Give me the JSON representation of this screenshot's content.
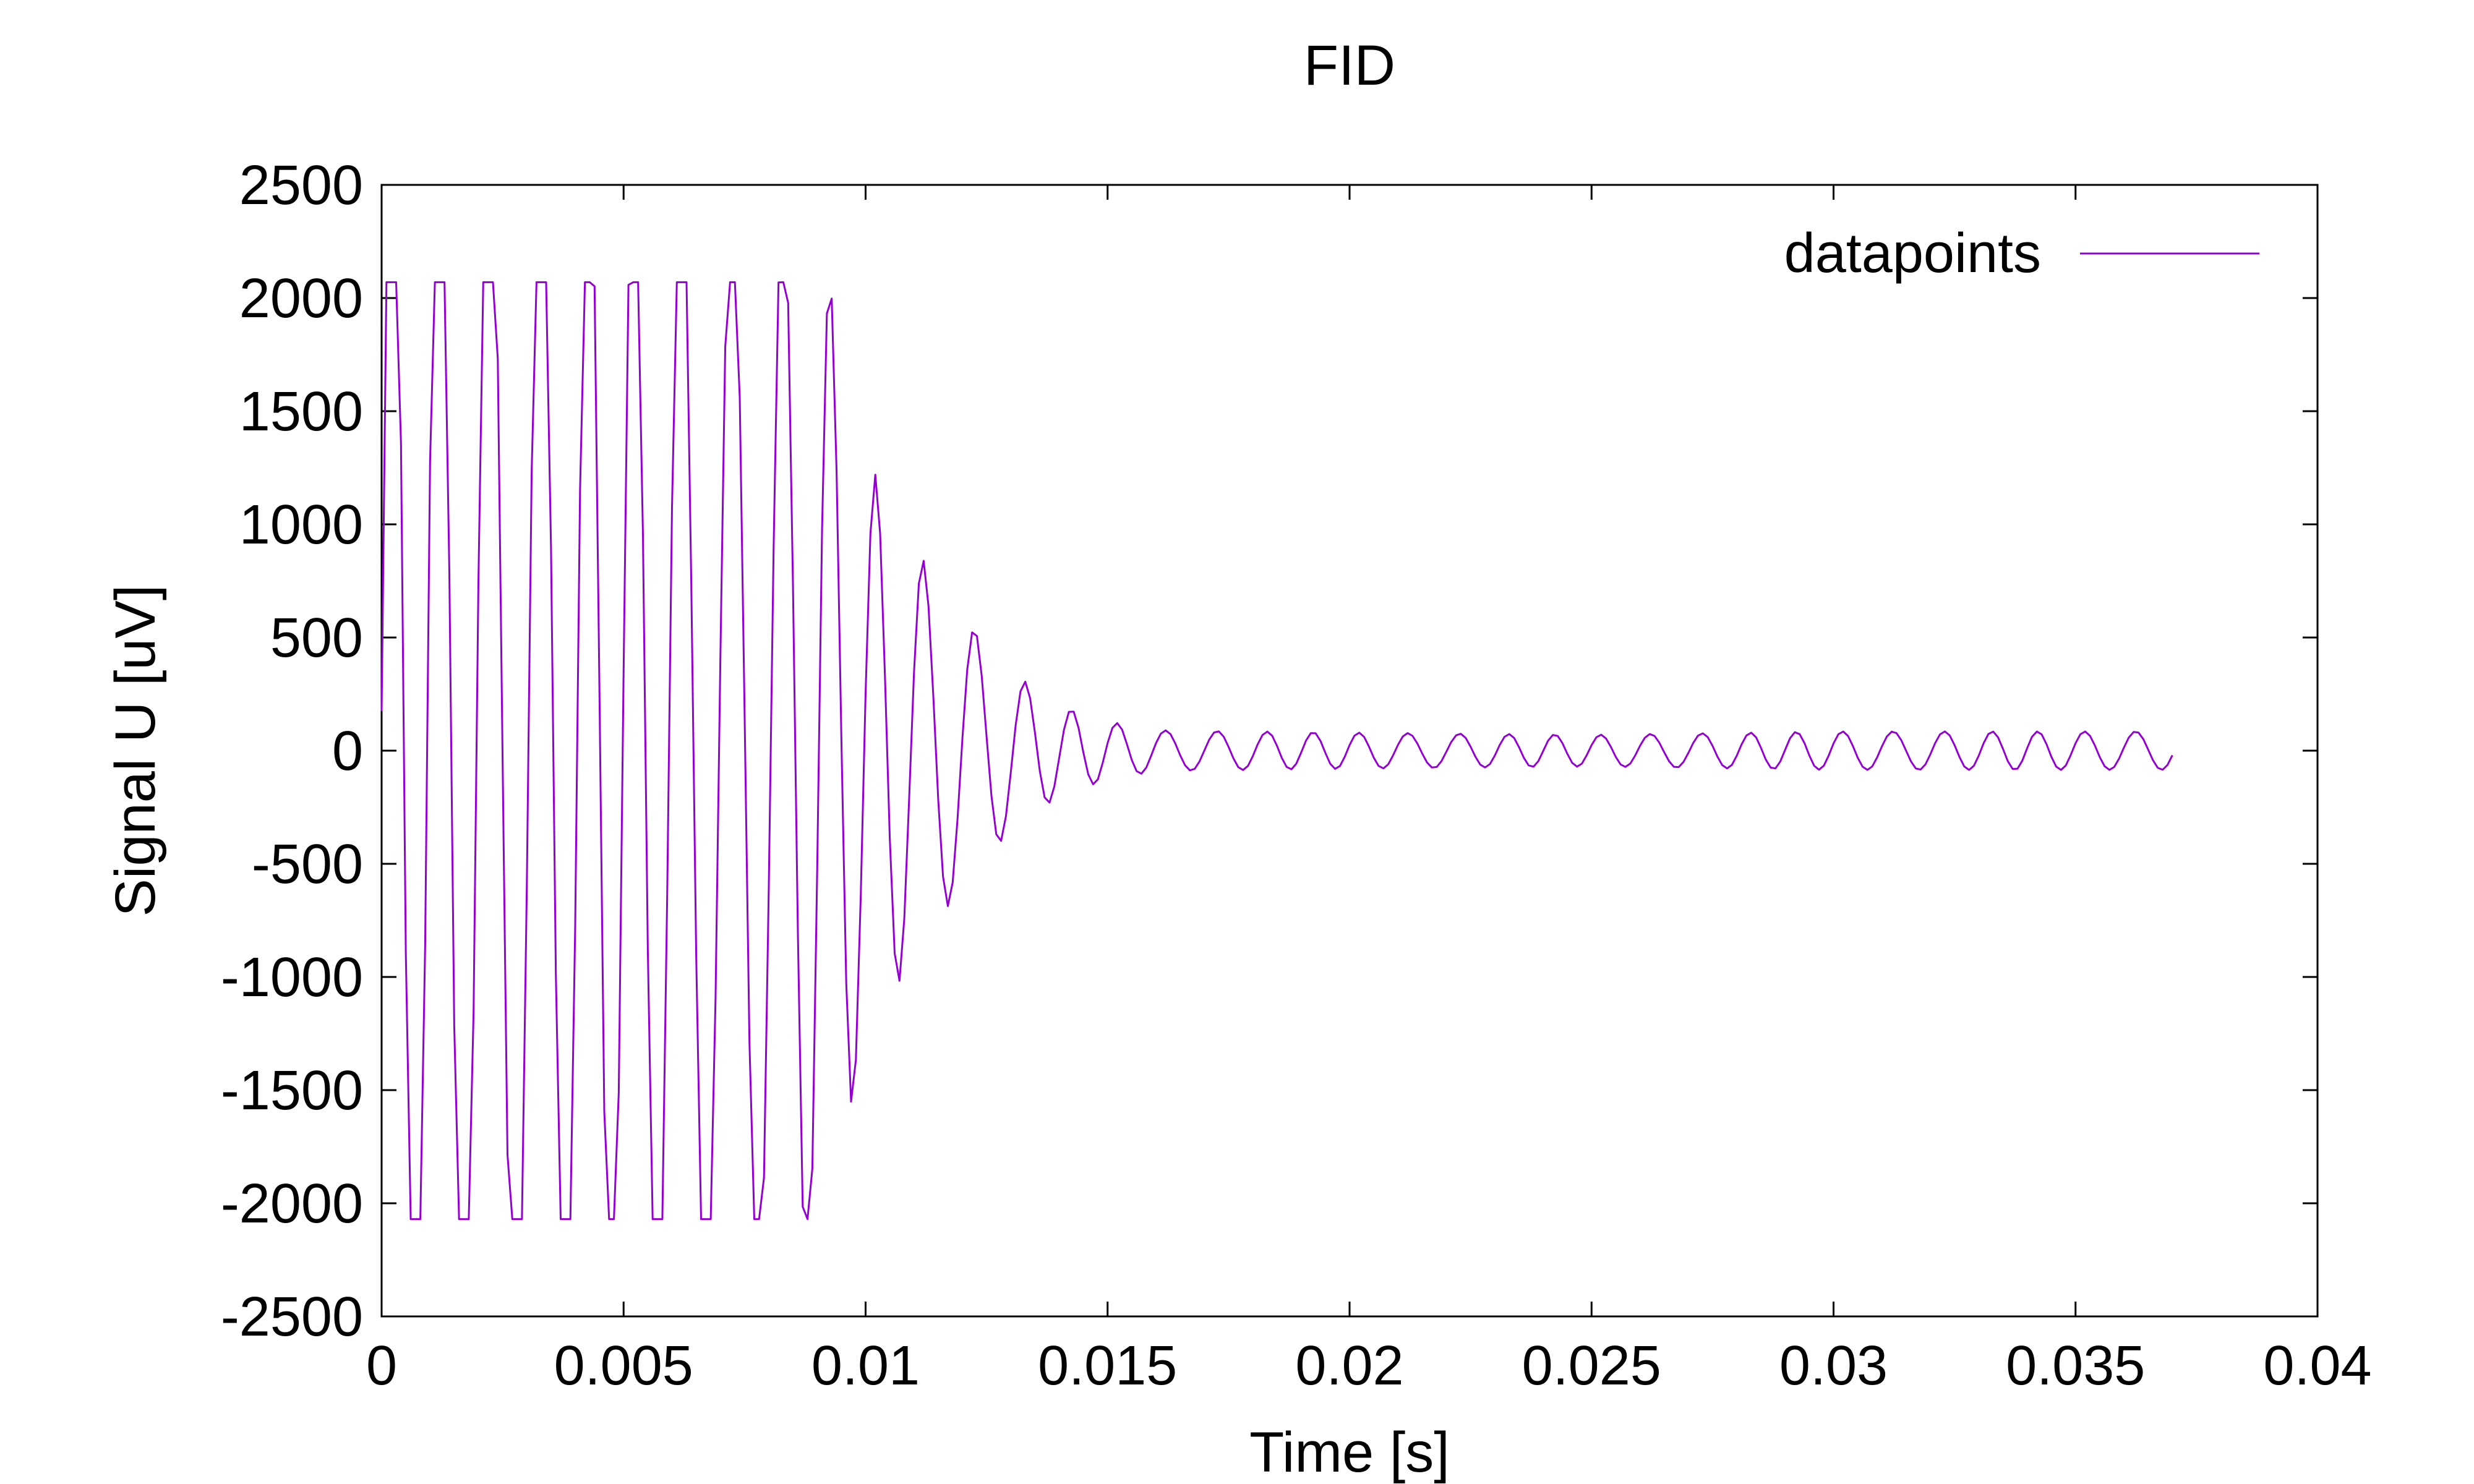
{
  "chart_data": {
    "type": "line",
    "title": "FID",
    "xlabel": "Time [s]",
    "ylabel": "Signal U [uV]",
    "xlim": [
      0,
      0.04
    ],
    "ylim": [
      -2500,
      2500
    ],
    "x_ticks": [
      "0",
      "0.005",
      "0.01",
      "0.015",
      "0.02",
      "0.025",
      "0.03",
      "0.035",
      "0.04"
    ],
    "y_ticks": [
      "2500",
      "2000",
      "1500",
      "1000",
      "500",
      "0",
      "-500",
      "-1000",
      "-1500",
      "-2000",
      "-2500"
    ],
    "grid": false,
    "legend": {
      "position": "top-right",
      "entries": [
        "datapoints"
      ]
    },
    "colors": {
      "series": "#9400d3",
      "axes": "#000000",
      "background": "#ffffff"
    },
    "series": [
      {
        "name": "datapoints",
        "model": {
          "description": "Free induction decay sampled every 0.0001 s from 0 to 0.037 s; oscillation period ~0.001 s, clipped at +/-2070 uV until ~0.009 s, then decaying to a residual amplitude of ~80 uV",
          "t_start": 0,
          "t_end": 0.037,
          "sample_interval": 0.0001,
          "period": 0.001,
          "clip_level": 2070,
          "envelope": [
            [
              0.0,
              3500
            ],
            [
              0.009,
              2400
            ],
            [
              0.0095,
              1800
            ],
            [
              0.01,
              1300
            ],
            [
              0.011,
              900
            ],
            [
              0.012,
              600
            ],
            [
              0.013,
              350
            ],
            [
              0.014,
              200
            ],
            [
              0.015,
              130
            ],
            [
              0.016,
              90
            ],
            [
              0.02,
              80
            ],
            [
              0.025,
              70
            ],
            [
              0.03,
              85
            ],
            [
              0.037,
              85
            ]
          ]
        }
      }
    ]
  }
}
